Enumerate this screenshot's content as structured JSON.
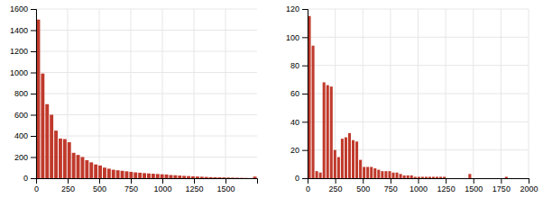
{
  "chart_data": [
    {
      "type": "histogram",
      "color": "#c0392b",
      "grid": true,
      "bins": [
        0,
        35,
        70,
        105,
        140,
        175,
        210,
        245,
        280,
        315,
        350,
        385,
        420,
        455,
        490,
        525,
        560,
        595,
        630,
        665,
        700,
        735,
        770,
        805,
        840,
        875,
        910,
        945,
        980,
        1015,
        1050,
        1085,
        1120,
        1155,
        1190,
        1225,
        1260,
        1295,
        1330,
        1365,
        1400,
        1435,
        1470,
        1505,
        1540,
        1575,
        1610,
        1645,
        1680,
        1715,
        1750
      ],
      "values": [
        1500,
        990,
        700,
        600,
        450,
        375,
        370,
        340,
        240,
        220,
        200,
        170,
        150,
        130,
        120,
        100,
        90,
        80,
        75,
        70,
        65,
        60,
        55,
        52,
        48,
        45,
        42,
        40,
        37,
        35,
        30,
        28,
        25,
        22,
        20,
        18,
        16,
        14,
        12,
        10,
        9,
        8,
        7,
        6,
        5,
        4,
        3,
        2,
        1,
        15
      ],
      "xlim": [
        0,
        1750
      ],
      "ylim": [
        0,
        1600
      ],
      "xticks": [
        0,
        250,
        500,
        750,
        1000,
        1250,
        1500
      ],
      "yticks": [
        0,
        200,
        400,
        600,
        800,
        1000,
        1200,
        1400,
        1600
      ]
    },
    {
      "type": "histogram",
      "color": "#c0392b",
      "grid": true,
      "bins": [
        0,
        33,
        66,
        99,
        132,
        165,
        198,
        231,
        264,
        297,
        330,
        363,
        396,
        429,
        462,
        495,
        528,
        561,
        594,
        627,
        660,
        693,
        726,
        759,
        792,
        825,
        858,
        891,
        924,
        957,
        990,
        1023,
        1056,
        1089,
        1122,
        1155,
        1188,
        1221,
        1254,
        1287,
        1320,
        1353,
        1386,
        1419,
        1452,
        1485,
        1518,
        1551,
        1584,
        1617,
        1650,
        1683,
        1716,
        1749,
        1782,
        1815
      ],
      "values": [
        115,
        94,
        5,
        4,
        68,
        66,
        65,
        20,
        15,
        28,
        29,
        32,
        27,
        26,
        13,
        8,
        8,
        8,
        7,
        6,
        5,
        5,
        5,
        4,
        4,
        3,
        2,
        2,
        2,
        1,
        1,
        1,
        1,
        1,
        1,
        1,
        1,
        1,
        0,
        0,
        0,
        0,
        0,
        0,
        3,
        0,
        0,
        0,
        0,
        0,
        0,
        0,
        0,
        0,
        1
      ],
      "xlim": [
        0,
        2000
      ],
      "ylim": [
        0,
        120
      ],
      "xticks": [
        0,
        250,
        500,
        750,
        1000,
        1250,
        1500,
        1750,
        2000
      ],
      "yticks": [
        0,
        20,
        40,
        60,
        80,
        100,
        120
      ]
    }
  ]
}
